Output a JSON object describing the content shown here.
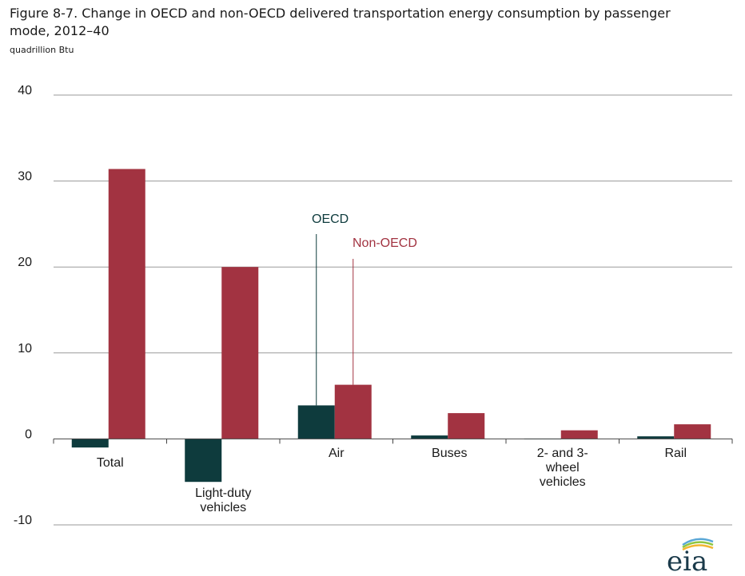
{
  "figure": {
    "title": "Figure 8-7. Change in OECD and non-OECD delivered transportation energy consumption by passenger mode, 2012–40",
    "unit": "quadrillion Btu"
  },
  "colors": {
    "oecd": "#0e3b3d",
    "non_oecd": "#a23341",
    "grid": "#9a9a9a",
    "axis": "#444444"
  },
  "logo": {
    "text": "eia"
  },
  "chart_data": {
    "type": "bar",
    "title": "Figure 8-7. Change in OECD and non-OECD delivered transportation energy consumption by passenger mode, 2012–40",
    "ylabel": "quadrillion Btu",
    "xlabel": "",
    "ylim": [
      -10,
      40
    ],
    "yticks": [
      -10,
      0,
      10,
      20,
      30,
      40
    ],
    "grid": true,
    "categories": [
      "Total",
      "Light-duty vehicles",
      "Air",
      "Buses",
      "2- and 3-wheel vehicles",
      "Rail"
    ],
    "category_label_lines": [
      [
        "Total"
      ],
      [
        "Light-duty",
        "vehicles"
      ],
      [
        "Air"
      ],
      [
        "Buses"
      ],
      [
        "2- and 3-",
        "wheel",
        "vehicles"
      ],
      [
        "Rail"
      ]
    ],
    "series": [
      {
        "name": "OECD",
        "values": [
          -1.0,
          -5.0,
          3.9,
          0.4,
          0.0,
          0.3
        ]
      },
      {
        "name": "Non-OECD",
        "values": [
          31.4,
          20.0,
          6.3,
          3.0,
          1.0,
          1.7
        ]
      }
    ],
    "legend_placement": "annotated near Air bars"
  }
}
